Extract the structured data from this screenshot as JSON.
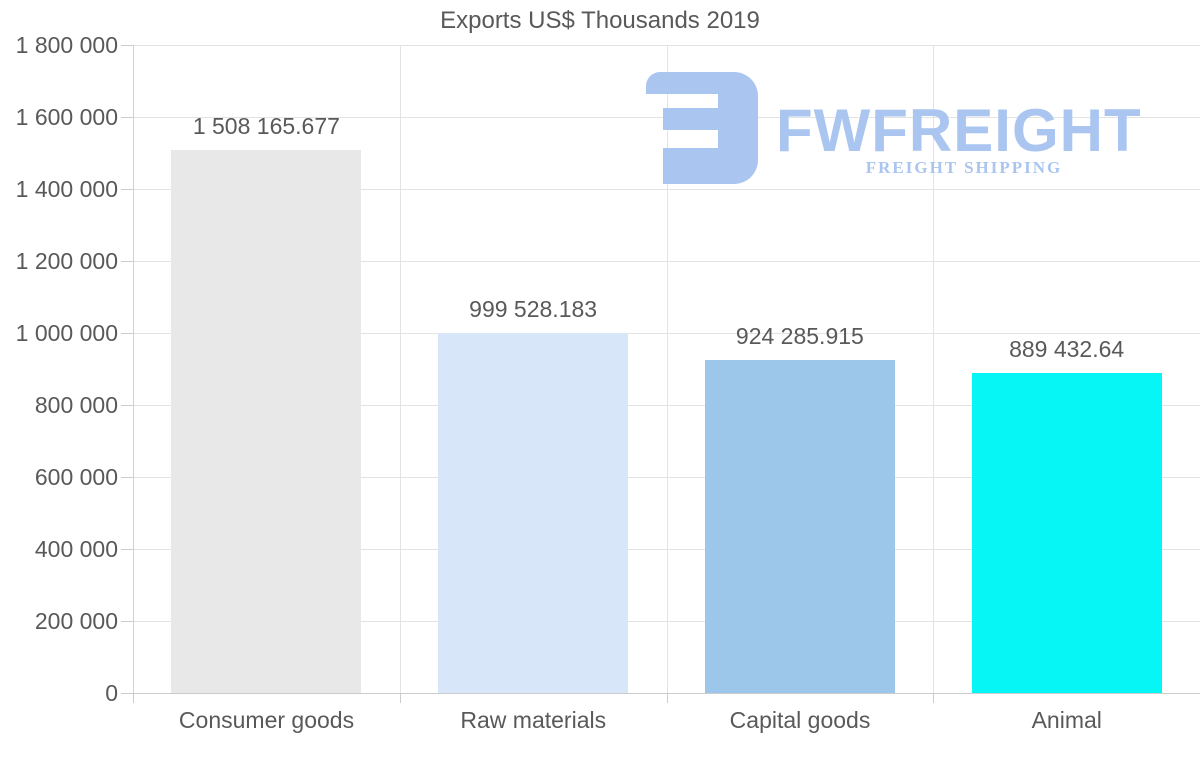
{
  "title": "Exports US$ Thousands 2019",
  "logo": {
    "wordmark": "FWFREIGHT",
    "tagline": "FREIGHT SHIPPING",
    "color": "#a9c5f0"
  },
  "colors": {
    "text": "#595959",
    "grid": "#e3e3e3",
    "axis": "#cccccc",
    "background": "#ffffff"
  },
  "chart_data": {
    "type": "bar",
    "title": "Exports US$ Thousands 2019",
    "categories": [
      "Consumer goods",
      "Raw materials",
      "Capital goods",
      "Animal"
    ],
    "values": [
      1508165.677,
      999528.183,
      924285.915,
      889432.64
    ],
    "value_labels": [
      "1 508 165.677",
      "999 528.183",
      "924 285.915",
      "889 432.64"
    ],
    "bar_colors": [
      "#e8e8e8",
      "#d7e6f8",
      "#9cc6ea",
      "#06f6f6"
    ],
    "xlabel": "",
    "ylabel": "",
    "ylim": [
      0,
      1800000
    ],
    "ytick_step": 200000,
    "ytick_labels": [
      "0",
      "200 000",
      "400 000",
      "600 000",
      "800 000",
      "1 000 000",
      "1 200 000",
      "1 400 000",
      "1 600 000",
      "1 800 000"
    ],
    "grid": true,
    "legend": false
  }
}
